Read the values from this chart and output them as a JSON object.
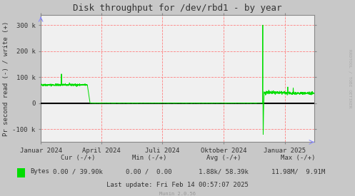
{
  "title": "Disk throughput for /dev/rbd1 - by year",
  "ylabel": "Pr second read (-) / write (+)",
  "bg_color": "#c8c8c8",
  "plot_bg_color": "#f0f0f0",
  "grid_color_major": "#ff8080",
  "line_color": "#00dd00",
  "zero_line_color": "#000000",
  "border_color": "#888888",
  "title_color": "#333333",
  "tick_color": "#333333",
  "watermark": "RRDTOOL / TOBI OETIKER",
  "munin_version": "Munin 2.0.56",
  "legend_label": "Bytes",
  "legend_cur": "0.00 / 39.90k",
  "legend_min": "0.00 /  0.00",
  "legend_avg": "1.88k/ 58.39k",
  "legend_max": "11.98M/  9.91M",
  "last_update": "Last update: Fri Feb 14 00:57:07 2025",
  "xmin": 1704067200,
  "xmax": 1739491200,
  "ymin": -150000,
  "ymax": 340000,
  "yticks": [
    -100000,
    0,
    100000,
    200000,
    300000
  ],
  "ytick_labels": [
    "-100 k",
    "0",
    "100 k",
    "200 k",
    "300 k"
  ],
  "xtick_positions": [
    1704067200,
    1711926000,
    1719792000,
    1727740800,
    1735689600
  ],
  "xtick_labels": [
    "Januar 2024",
    "April 2024",
    "Juli 2024",
    "Oktober 2024",
    "Januar 2025"
  ]
}
